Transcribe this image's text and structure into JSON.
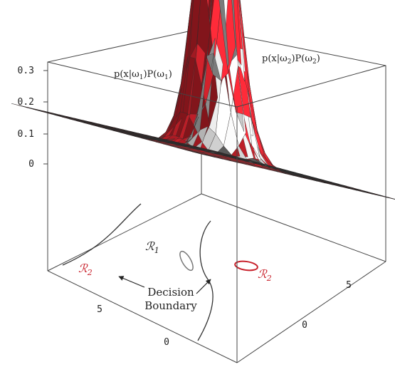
{
  "chart_data": {
    "type": "surface3d",
    "title": "",
    "z_axis": {
      "ticks": [
        "0",
        "0.1",
        "0.2",
        "0.3"
      ],
      "range": [
        0,
        0.36
      ]
    },
    "x_axis": {
      "ticks": [
        "0",
        "5"
      ]
    },
    "y_axis": {
      "ticks": [
        "0",
        "5"
      ]
    },
    "surfaces": [
      {
        "label_main": "p(x|ω",
        "label_sub1": "1",
        "label_mid": ")P(ω",
        "label_sub2": "1",
        "label_end": ")",
        "color": "#bdbdbd",
        "peak": 0.25,
        "center": [
          0,
          1.5
        ]
      },
      {
        "label_main": "p(x|ω",
        "label_sub1": "2",
        "label_mid": ")P(ω",
        "label_sub2": "2",
        "label_end": ")",
        "color": "#c8202a",
        "peak": 0.34,
        "center": [
          3,
          4
        ]
      }
    ],
    "regions": [
      {
        "name": "ℛ",
        "sub": "1",
        "color": "#222222"
      },
      {
        "name": "ℛ",
        "sub": "2",
        "color": "#c8202a"
      },
      {
        "name": "ℛ",
        "sub": "2",
        "color": "#c8202a"
      }
    ],
    "annotation": {
      "line1": "Decision",
      "line2": "Boundary"
    },
    "colors": {
      "class1": "#bdbdbd",
      "class2": "#c8202a",
      "base_grid": "#5a5a5a"
    }
  }
}
